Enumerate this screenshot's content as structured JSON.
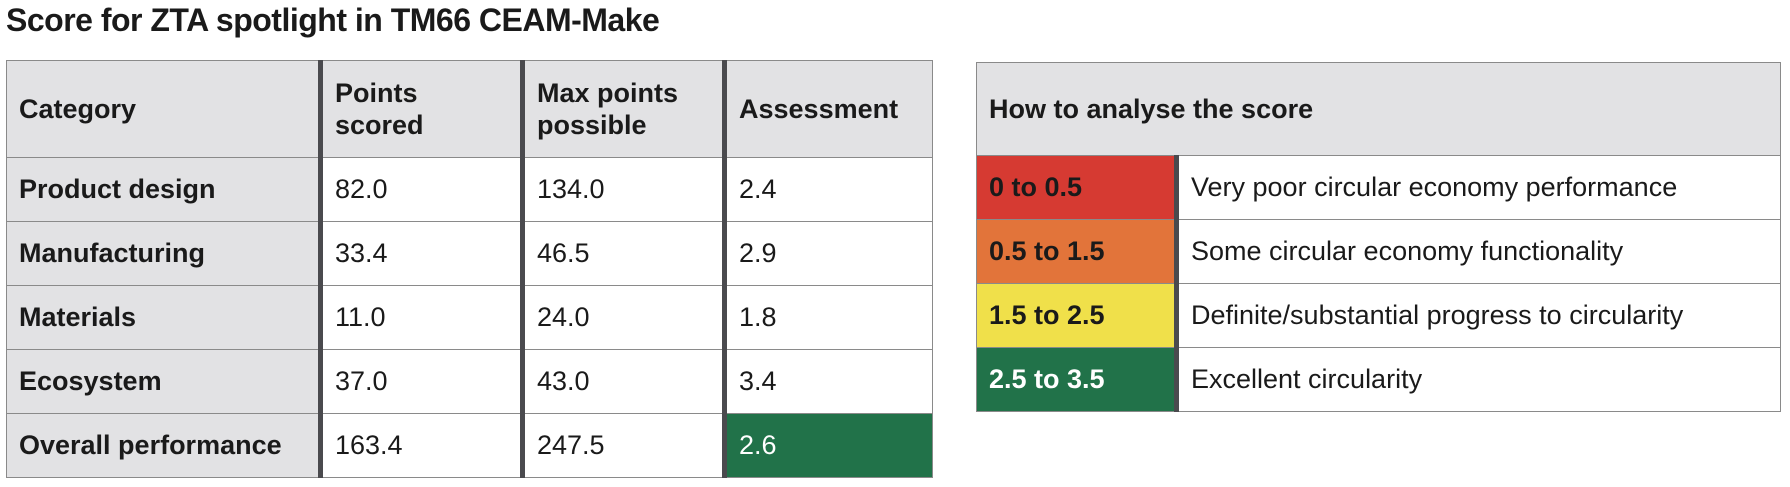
{
  "title": "Score for ZTA spotlight in TM66 CEAM-Make",
  "colors": {
    "header_bg": "#e2e2e4",
    "very_poor": "#d63a32",
    "some": "#e2743a",
    "definite": "#f0e04a",
    "excellent": "#217249"
  },
  "score_table": {
    "headers": {
      "category": "Category",
      "points_line1": "Points",
      "points_line2": "scored",
      "max_line1": "Max points",
      "max_line2": "possible",
      "assessment": "Assessment"
    },
    "rows": [
      {
        "category": "Product design",
        "points": "82.0",
        "max": "134.0",
        "assessment": "2.4"
      },
      {
        "category": "Manufacturing",
        "points": "33.4",
        "max": "46.5",
        "assessment": "2.9"
      },
      {
        "category": "Materials",
        "points": "11.0",
        "max": "24.0",
        "assessment": "1.8"
      },
      {
        "category": "Ecosystem",
        "points": "37.0",
        "max": "43.0",
        "assessment": "3.4"
      },
      {
        "category": "Overall performance",
        "points": "163.4",
        "max": "247.5",
        "assessment": "2.6"
      }
    ]
  },
  "key_table": {
    "header": "How to analyse the score",
    "rows": [
      {
        "range": "0 to 0.5",
        "description": "Very poor circular economy performance"
      },
      {
        "range": "0.5 to 1.5",
        "description": "Some circular economy functionality"
      },
      {
        "range": "1.5 to 2.5",
        "description": "Definite/substantial progress to circularity"
      },
      {
        "range": "2.5 to 3.5",
        "description": "Excellent circularity"
      }
    ]
  }
}
